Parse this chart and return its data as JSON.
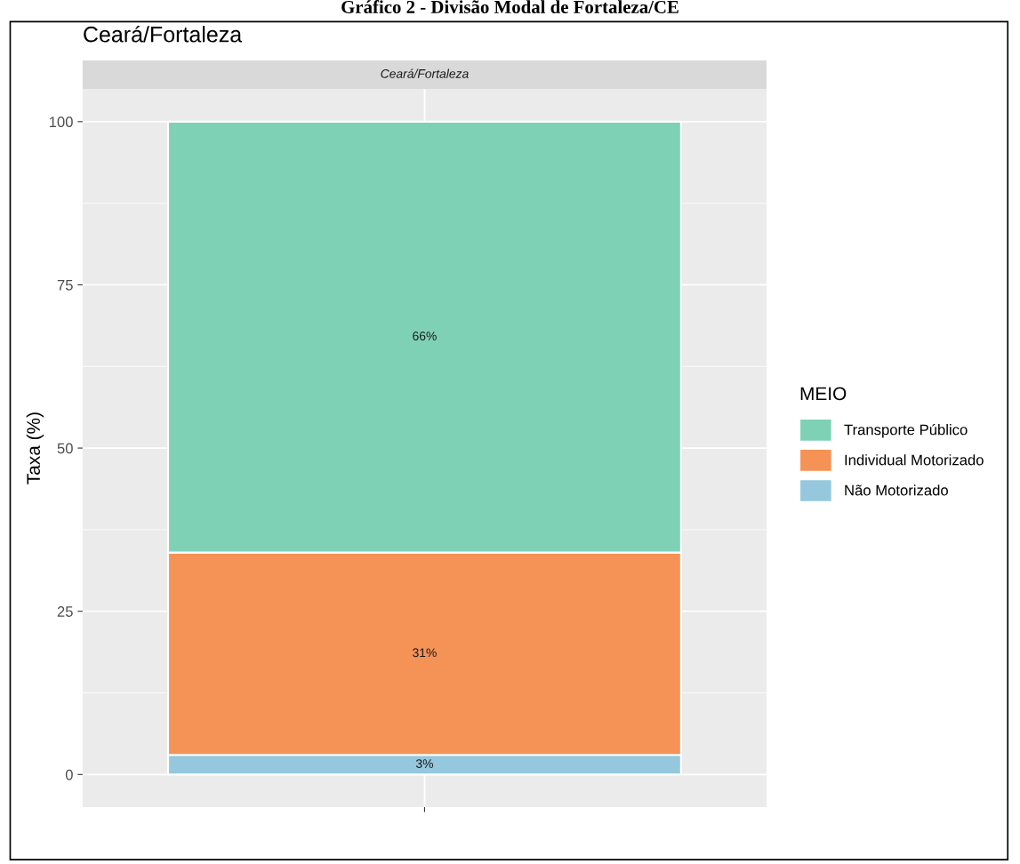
{
  "chart_data": {
    "type": "bar",
    "title": "Ceará/Fortaleza",
    "subtitle": "Ceará/Fortaleza",
    "ylabel": "Taxa (%)",
    "legend_title": "MEIO",
    "annotations": [
      "Gráfico 2 - Divisão Modal de Fortaleza/CE"
    ],
    "categories": [
      null
    ],
    "stacked": true,
    "series": [
      {
        "name": "Não Motorizado",
        "color": "#95c8dd",
        "values": [
          3
        ],
        "value_labels": [
          "3%"
        ]
      },
      {
        "name": "Individual Motorizado",
        "color": "#f59256",
        "values": [
          31
        ],
        "value_labels": [
          "31%"
        ]
      },
      {
        "name": "Transporte Público",
        "color": "#7fd1b6",
        "values": [
          66
        ],
        "value_labels": [
          "66%"
        ]
      }
    ],
    "ylim": [
      -5,
      105
    ],
    "yticks": [
      0,
      25,
      50,
      75,
      100
    ],
    "grid": true,
    "legend": "right"
  }
}
